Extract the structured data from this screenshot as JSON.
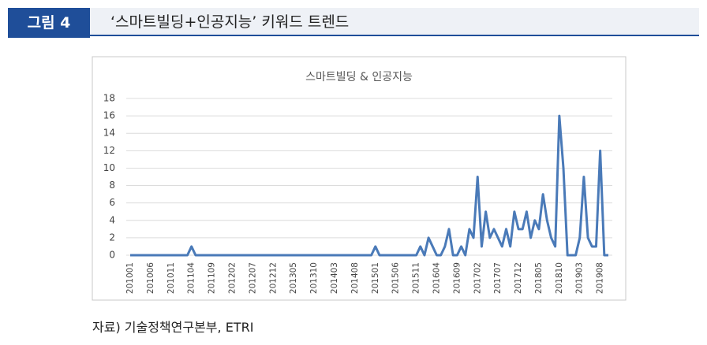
{
  "header": {
    "label": "그림 4",
    "title": "‘스마트빌딩+인공지능’ 키워드 트렌드"
  },
  "source": "자료) 기술정책연구본부, ETRI",
  "chart_data": {
    "type": "line",
    "title": "스마트빌딩 & 인공지능",
    "categories": [
      "201001",
      null,
      null,
      null,
      null,
      "201006",
      null,
      null,
      null,
      null,
      "201011",
      null,
      null,
      null,
      null,
      "201104",
      null,
      null,
      null,
      null,
      "201109",
      null,
      null,
      null,
      null,
      "201202",
      null,
      null,
      null,
      null,
      "201207",
      null,
      null,
      null,
      null,
      "201212",
      null,
      null,
      null,
      null,
      "201305",
      null,
      null,
      null,
      null,
      "201310",
      null,
      null,
      null,
      null,
      "201403",
      null,
      null,
      null,
      null,
      "201408",
      null,
      null,
      null,
      null,
      "201501",
      null,
      null,
      null,
      null,
      "201506",
      null,
      null,
      null,
      null,
      "201511",
      null,
      null,
      null,
      null,
      "201604",
      null,
      null,
      null,
      null,
      "201609",
      null,
      null,
      null,
      null,
      "201702",
      null,
      null,
      null,
      null,
      "201707",
      null,
      null,
      null,
      null,
      "201712",
      null,
      null,
      null,
      null,
      "201805",
      null,
      null,
      null,
      null,
      "201810",
      null,
      null,
      null,
      null,
      "201903",
      null,
      null,
      null,
      null,
      "201908",
      null,
      null
    ],
    "series": [
      {
        "name": "스마트빌딩 & 인공지능",
        "color": "#4a7ab8",
        "values": [
          0,
          0,
          0,
          0,
          0,
          0,
          0,
          0,
          0,
          0,
          0,
          0,
          0,
          0,
          0,
          1,
          0,
          0,
          0,
          0,
          0,
          0,
          0,
          0,
          0,
          0,
          0,
          0,
          0,
          0,
          0,
          0,
          0,
          0,
          0,
          0,
          0,
          0,
          0,
          0,
          0,
          0,
          0,
          0,
          0,
          0,
          0,
          0,
          0,
          0,
          0,
          0,
          0,
          0,
          0,
          0,
          0,
          0,
          0,
          0,
          1,
          0,
          0,
          0,
          0,
          0,
          0,
          0,
          0,
          0,
          0,
          1,
          0,
          2,
          1,
          0,
          0,
          1,
          3,
          0,
          0,
          1,
          0,
          3,
          2,
          9,
          1,
          5,
          2,
          3,
          2,
          1,
          3,
          1,
          5,
          3,
          3,
          5,
          2,
          4,
          3,
          7,
          4,
          2,
          1,
          16,
          10,
          0,
          0,
          0,
          2,
          9,
          2,
          1,
          1,
          12,
          0,
          0
        ]
      }
    ],
    "ylim": [
      0,
      18
    ],
    "yticks": [
      0,
      2,
      4,
      6,
      8,
      10,
      12,
      14,
      16,
      18
    ],
    "grid": true
  }
}
